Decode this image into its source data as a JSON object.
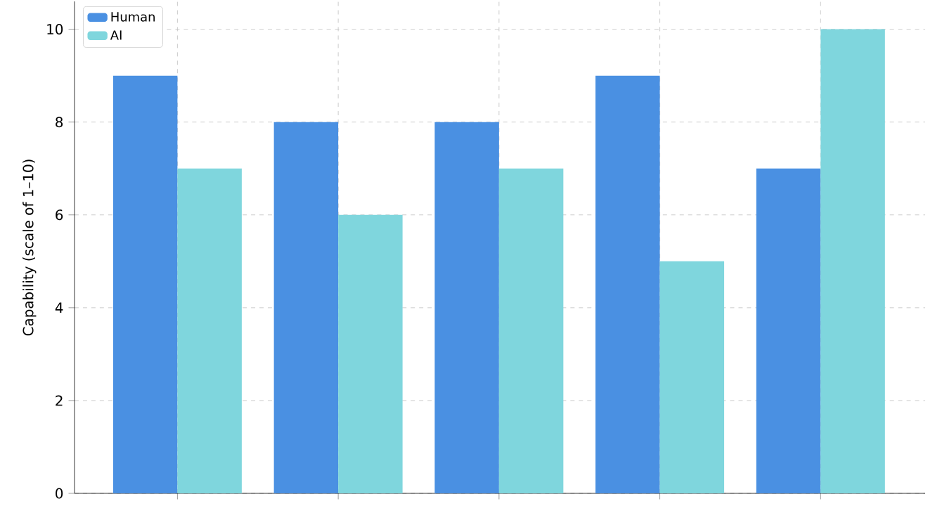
{
  "chart_data": {
    "type": "bar",
    "ylabel": "Capability (scale of 1–10)",
    "categories": [
      null,
      null,
      null,
      null,
      null
    ],
    "series": [
      {
        "name": "Human",
        "color": "#4a90e2",
        "values": [
          9,
          8,
          8,
          9,
          7
        ]
      },
      {
        "name": "AI",
        "color": "#7fd6dd",
        "values": [
          7,
          6,
          7,
          5,
          10
        ]
      }
    ],
    "ylim": [
      0,
      10.6
    ],
    "yticks": [
      0,
      2,
      4,
      6,
      8,
      10
    ],
    "grid": true,
    "legend": "top left",
    "tick_labels": "y"
  }
}
